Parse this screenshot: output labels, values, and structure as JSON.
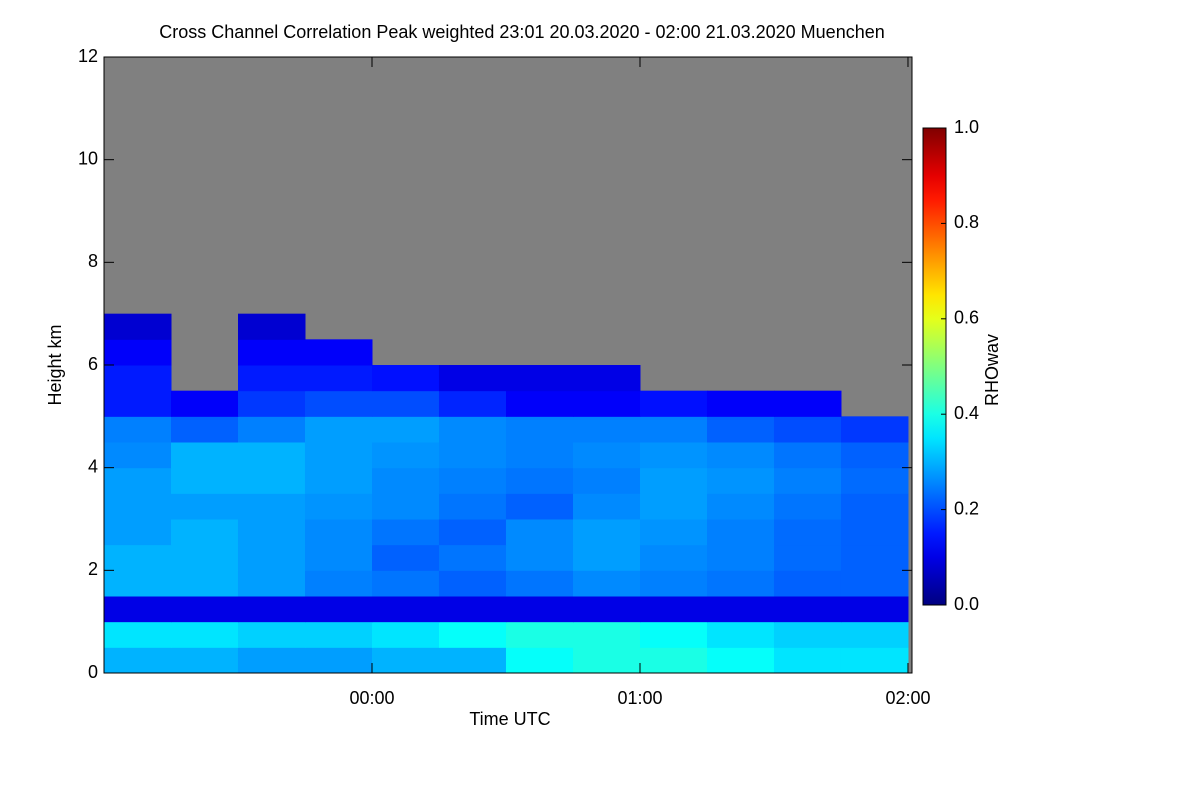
{
  "chart_data": {
    "type": "heatmap",
    "title": "Cross Channel Correlation Peak weighted   23:01 20.03.2020 - 02:00 21.03.2020 Muenchen",
    "x_label": "Time UTC",
    "y_label": "Height km",
    "colorbar_label": "RHOwav",
    "xlim": [
      23.0,
      26.015
    ],
    "xticks": [
      {
        "value": 24,
        "label": "00:00"
      },
      {
        "value": 25,
        "label": "01:00"
      },
      {
        "value": 26,
        "label": "02:00"
      }
    ],
    "ylim": [
      0,
      12
    ],
    "yticks": [
      0,
      2,
      4,
      6,
      8,
      10,
      12
    ],
    "clim": [
      0,
      1
    ],
    "cticks": [
      {
        "value": 0,
        "label": "0.0"
      },
      {
        "value": 0.2,
        "label": "0.2"
      },
      {
        "value": 0.4,
        "label": "0.4"
      },
      {
        "value": 0.6,
        "label": "0.6"
      },
      {
        "value": 0.8,
        "label": "0.8"
      },
      {
        "value": 1,
        "label": "1.0"
      }
    ],
    "colormap": "jet",
    "missing_color": "#808080",
    "x_bins": [
      23.0,
      23.25,
      23.5,
      23.75,
      24.0,
      24.25,
      24.5,
      24.75,
      25.0,
      25.25,
      25.5,
      25.75,
      26.0
    ],
    "y_bins": [
      0,
      0.5,
      1,
      1.5,
      2,
      2.5,
      3,
      3.5,
      4,
      4.5,
      5,
      5.5,
      6,
      6.5,
      7
    ],
    "z": [
      [
        0.3,
        0.3,
        0.28,
        0.28,
        0.3,
        0.3,
        0.38,
        0.4,
        0.4,
        0.38,
        0.35,
        0.35
      ],
      [
        0.35,
        0.35,
        0.33,
        0.33,
        0.35,
        0.38,
        0.4,
        0.4,
        0.38,
        0.35,
        0.33,
        0.33
      ],
      [
        0.1,
        0.1,
        0.1,
        0.1,
        0.1,
        0.1,
        0.1,
        0.1,
        0.1,
        0.1,
        0.1,
        0.1
      ],
      [
        0.3,
        0.3,
        0.28,
        0.25,
        0.24,
        0.22,
        0.24,
        0.26,
        0.25,
        0.24,
        0.22,
        0.22
      ],
      [
        0.3,
        0.3,
        0.28,
        0.26,
        0.22,
        0.24,
        0.26,
        0.28,
        0.26,
        0.25,
        0.23,
        0.22
      ],
      [
        0.28,
        0.3,
        0.28,
        0.26,
        0.24,
        0.22,
        0.26,
        0.28,
        0.27,
        0.25,
        0.23,
        0.22
      ],
      [
        0.28,
        0.28,
        0.28,
        0.27,
        0.26,
        0.24,
        0.22,
        0.26,
        0.28,
        0.26,
        0.24,
        0.22
      ],
      [
        0.28,
        0.3,
        0.3,
        0.28,
        0.26,
        0.25,
        0.24,
        0.25,
        0.28,
        0.27,
        0.25,
        0.23
      ],
      [
        0.26,
        0.3,
        0.3,
        0.28,
        0.27,
        0.26,
        0.25,
        0.26,
        0.27,
        0.26,
        0.24,
        0.22
      ],
      [
        0.25,
        0.22,
        0.25,
        0.28,
        0.28,
        0.26,
        0.25,
        0.25,
        0.25,
        0.22,
        0.2,
        0.18
      ],
      [
        0.15,
        0.12,
        0.18,
        0.2,
        0.2,
        0.16,
        0.12,
        0.12,
        0.14,
        0.12,
        0.12,
        null
      ],
      [
        0.15,
        null,
        0.15,
        0.15,
        0.14,
        0.1,
        0.1,
        0.1,
        null,
        null,
        null,
        null
      ],
      [
        0.12,
        null,
        0.12,
        0.12,
        null,
        null,
        null,
        null,
        null,
        null,
        null,
        null
      ],
      [
        0.08,
        null,
        0.08,
        null,
        null,
        null,
        null,
        null,
        null,
        null,
        null,
        null
      ]
    ]
  }
}
